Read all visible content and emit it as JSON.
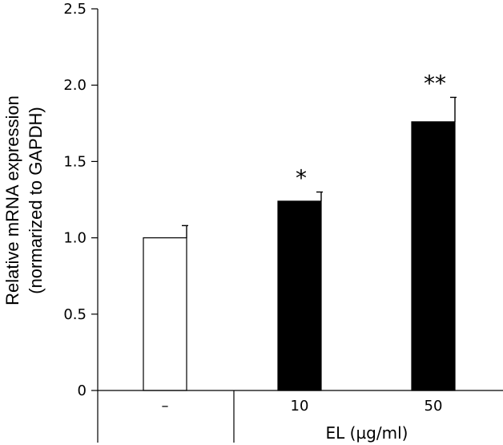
{
  "chart_data": {
    "type": "bar",
    "title": "",
    "ylabel_line1": "Relative mRNA expression",
    "ylabel_line2": "(normarized to GAPDH)",
    "xlabel": "EL (µg/ml)",
    "ylim": [
      0,
      2.5
    ],
    "yticks": [
      {
        "value": 0,
        "label": "0"
      },
      {
        "value": 0.5,
        "label": "0.5"
      },
      {
        "value": 1.0,
        "label": "1.0"
      },
      {
        "value": 1.5,
        "label": "1.5"
      },
      {
        "value": 2.0,
        "label": "2.0"
      },
      {
        "value": 2.5,
        "label": "2.5"
      }
    ],
    "categories": [
      "–",
      "10",
      "50"
    ],
    "values": [
      1.0,
      1.24,
      1.76
    ],
    "errors": [
      0.08,
      0.06,
      0.16
    ],
    "fills": [
      "#ffffff",
      "#000000",
      "#000000"
    ],
    "significance": [
      "",
      "*",
      "**"
    ]
  }
}
